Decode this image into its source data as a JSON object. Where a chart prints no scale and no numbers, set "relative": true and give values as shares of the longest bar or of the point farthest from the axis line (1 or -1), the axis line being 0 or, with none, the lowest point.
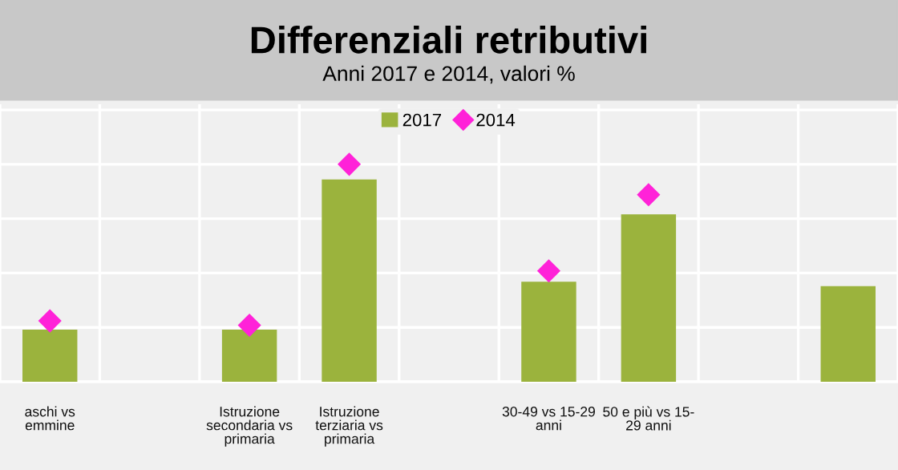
{
  "chart_data": {
    "type": "bar",
    "title": "Differenziali retributivi",
    "subtitle": "Anni 2017 e 2014, valori %",
    "relative": true,
    "categories": [
      "aschi vs\nemmine",
      null,
      "Istruzione\nsecondaria vs\nprimaria",
      "Istruzione\nterziaria vs\nprimaria",
      null,
      "30-49 vs 15-29\nanni",
      "50 e più vs 15-\n29 anni",
      null,
      null
    ],
    "series": [
      {
        "name": "2017",
        "color": "#9bb33d",
        "values": [
          0.24,
          null,
          0.24,
          0.93,
          null,
          0.46,
          0.77,
          null,
          0.44
        ]
      },
      {
        "name": "2014",
        "color": "#ff22d8",
        "type": "scatter",
        "marker": "diamond",
        "values": [
          0.28,
          null,
          0.26,
          1.0,
          null,
          0.51,
          0.86,
          null,
          null
        ]
      }
    ],
    "grid": true,
    "legend": "top"
  }
}
